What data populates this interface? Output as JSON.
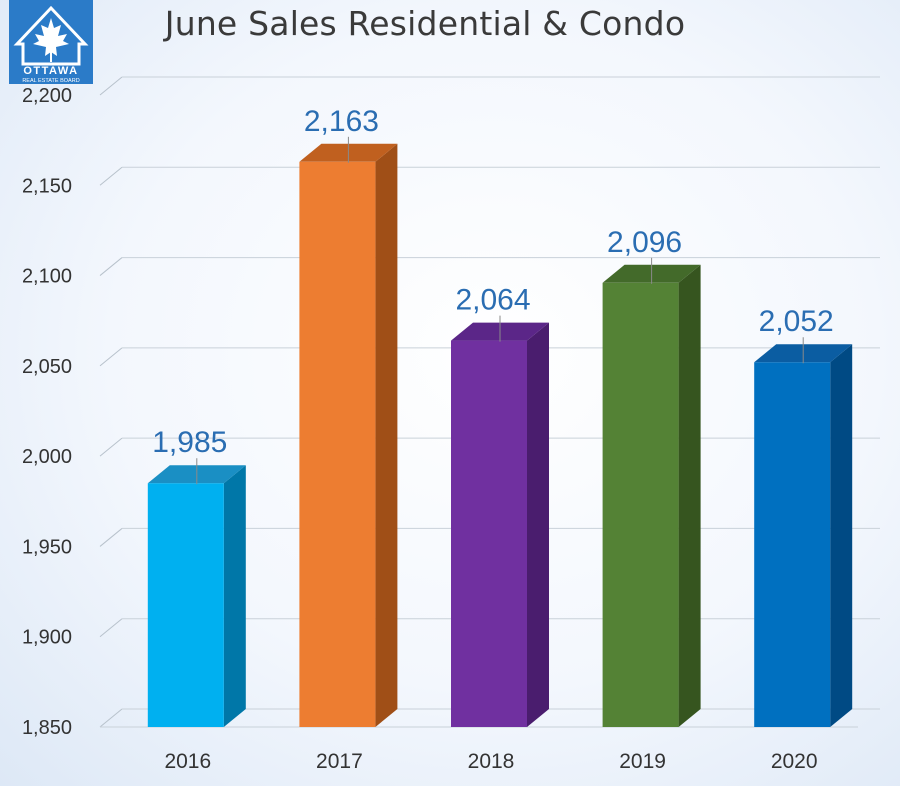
{
  "logo": {
    "name": "ottawa-real-estate-board-logo",
    "text_main": "OTTAWA",
    "text_sub": "REAL ESTATE BOARD"
  },
  "chart_data": {
    "type": "bar",
    "title": "June Sales Residential & Condo",
    "categories": [
      "2016",
      "2017",
      "2018",
      "2019",
      "2020"
    ],
    "values": [
      1985,
      2163,
      2064,
      2096,
      2052
    ],
    "value_labels": [
      "1,985",
      "2,163",
      "2,064",
      "2,096",
      "2,052"
    ],
    "colors": [
      "#00b0f0",
      "#ed7d31",
      "#7030a0",
      "#548235",
      "#0070c0"
    ],
    "side_colors": [
      "#0077a8",
      "#a04f17",
      "#4a1d6e",
      "#36551f",
      "#004a84"
    ],
    "top_colors": [
      "#1a8fc4",
      "#c0601f",
      "#5b2688",
      "#436a2a",
      "#0b5da2"
    ],
    "ylim": [
      1850,
      2200
    ],
    "yticks": [
      1850,
      1900,
      1950,
      2000,
      2050,
      2100,
      2150,
      2200
    ],
    "ytick_labels": [
      "1,850",
      "1,900",
      "1,950",
      "2,000",
      "2,050",
      "2,100",
      "2,150",
      "2,200"
    ],
    "xlabel": "",
    "ylabel": "",
    "grid": true,
    "legend": false,
    "style": "3d-column"
  }
}
